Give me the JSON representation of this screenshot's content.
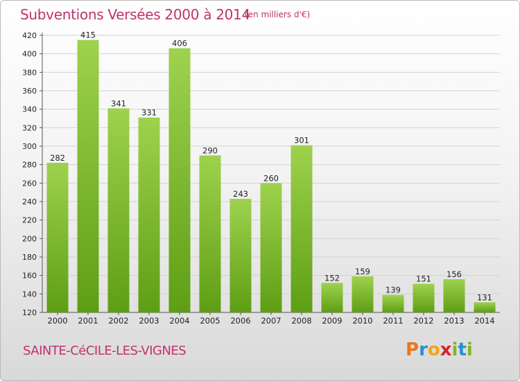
{
  "title": "Subventions Versées 2000 à 2014",
  "unit_note": "(en milliers d'€)",
  "commune": "SAINTE-CéCILE-LES-VIGNES",
  "logo": {
    "letters": [
      "P",
      "r",
      "o",
      "x",
      "i",
      "t",
      "i"
    ],
    "colors": [
      "#e8761b",
      "#2a8fd0",
      "#f2a51a",
      "#d7232a",
      "#7cb928",
      "#2a8fd0",
      "#7cb928"
    ]
  },
  "colors": {
    "title": "#c0326f",
    "bar_top": "#9ed24e",
    "bar_bottom": "#5e9e14",
    "grid": "#d2d2d2"
  },
  "chart_data": {
    "type": "bar",
    "title": "Subventions Versées 2000 à 2014",
    "subtitle": "(en milliers d'€)",
    "categories": [
      "2000",
      "2001",
      "2002",
      "2003",
      "2004",
      "2005",
      "2006",
      "2007",
      "2008",
      "2009",
      "2010",
      "2011",
      "2012",
      "2013",
      "2014"
    ],
    "values": [
      282,
      415,
      341,
      331,
      406,
      290,
      243,
      260,
      301,
      152,
      159,
      139,
      151,
      156,
      131
    ],
    "ylim": [
      120,
      420
    ],
    "yticks": [
      120,
      140,
      160,
      180,
      200,
      220,
      240,
      260,
      280,
      300,
      320,
      340,
      360,
      380,
      400,
      420
    ],
    "grid": true,
    "data_labels": true,
    "xlabel": "",
    "ylabel": ""
  }
}
